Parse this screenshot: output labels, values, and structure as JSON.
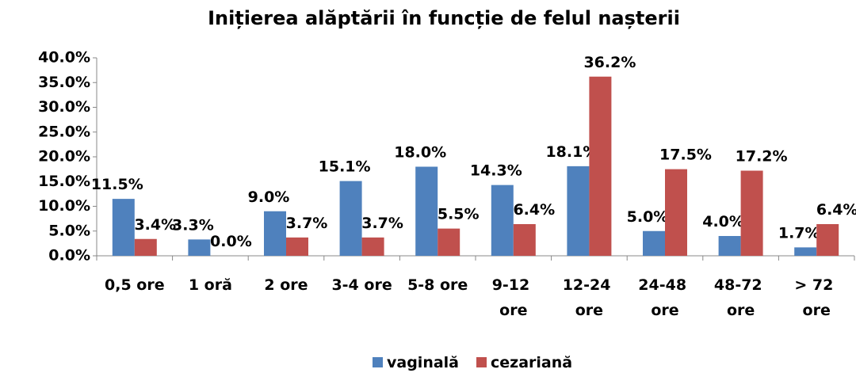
{
  "chart_data": {
    "type": "bar",
    "title": "Inițierea alăptării în funcție de felul nașterii",
    "categories": [
      "0,5 ore",
      "1 oră",
      "2 ore",
      "3-4 ore",
      "5-8 ore",
      "9-12 ore",
      "12-24 ore",
      "24-48 ore",
      "48-72 ore",
      "> 72 ore"
    ],
    "series": [
      {
        "name": "vaginală",
        "color": "#4f81bd",
        "values": [
          11.5,
          3.3,
          9.0,
          15.1,
          18.0,
          14.3,
          18.1,
          5.0,
          4.0,
          1.7
        ],
        "value_labels": [
          "11.5%",
          "3.3%",
          "9.0%",
          "15.1%",
          "18.0%",
          "14.3%",
          "18.1%",
          "5.0%",
          "4.0%",
          "1.7%"
        ]
      },
      {
        "name": "cezariană",
        "color": "#c0504d",
        "values": [
          3.4,
          0.0,
          3.7,
          3.7,
          5.5,
          6.4,
          36.2,
          17.5,
          17.2,
          6.4
        ],
        "value_labels": [
          "3.4%",
          "0.0%",
          "3.7%",
          "3.7%",
          "5.5%",
          "6.4%",
          "36.2%",
          "17.5%",
          "17.2%",
          "6.4%"
        ]
      }
    ],
    "ylim": [
      0,
      40
    ],
    "yticks": [
      {
        "value": 0,
        "label": "0.0%"
      },
      {
        "value": 5,
        "label": "5.0%"
      },
      {
        "value": 10,
        "label": "10.0%"
      },
      {
        "value": 15,
        "label": "15.0%"
      },
      {
        "value": 20,
        "label": "20.0%"
      },
      {
        "value": 25,
        "label": "25.0%"
      },
      {
        "value": 30,
        "label": "30.0%"
      },
      {
        "value": 35,
        "label": "35.0%"
      },
      {
        "value": 40,
        "label": "40.0%"
      }
    ],
    "legend": "bottom"
  }
}
